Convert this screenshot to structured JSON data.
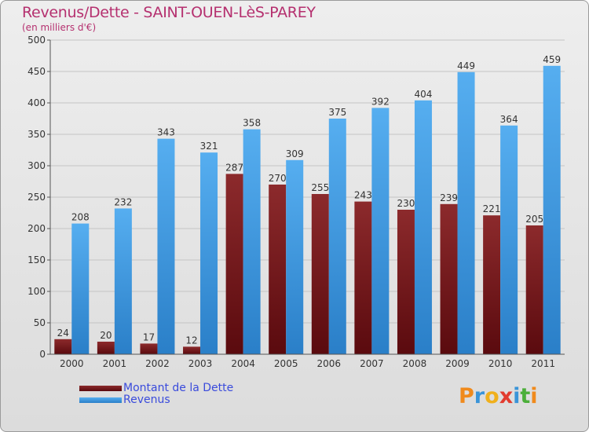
{
  "header": {
    "title": "Revenus/Dette - SAINT-OUEN-LèS-PAREY",
    "subtitle": "(en milliers d'€)"
  },
  "colors": {
    "title": "#b5306f",
    "dette": "#7a1a1c",
    "revenus": "#3a94d8",
    "legend_text": "#3a4bdc"
  },
  "legend": {
    "dette_label": "Montant de la Dette",
    "revenus_label": "Revenus"
  },
  "logo": {
    "text": "Proxiti"
  },
  "chart_data": {
    "type": "bar",
    "title": "Revenus/Dette - SAINT-OUEN-LèS-PAREY",
    "subtitle": "(en milliers d'€)",
    "xlabel": "",
    "ylabel": "",
    "ylim": [
      0,
      500
    ],
    "yticks": [
      0,
      50,
      100,
      150,
      200,
      250,
      300,
      350,
      400,
      450,
      500
    ],
    "grid": true,
    "legend_position": "bottom-left",
    "categories": [
      "2000",
      "2001",
      "2002",
      "2003",
      "2004",
      "2005",
      "2006",
      "2007",
      "2008",
      "2009",
      "2010",
      "2011"
    ],
    "series": [
      {
        "name": "Montant de la Dette",
        "values": [
          24,
          20,
          17,
          12,
          287,
          270,
          255,
          243,
          230,
          239,
          221,
          205
        ]
      },
      {
        "name": "Revenus",
        "values": [
          208,
          232,
          343,
          321,
          358,
          309,
          375,
          392,
          404,
          449,
          364,
          459
        ]
      }
    ]
  }
}
